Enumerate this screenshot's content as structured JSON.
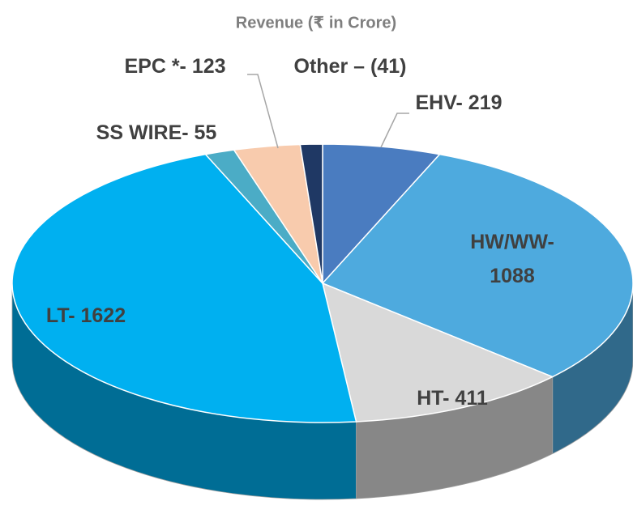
{
  "chart_data": {
    "type": "pie",
    "title": "Revenue (₹ in Crore)",
    "values": [
      219,
      1088,
      411,
      1622,
      55,
      123,
      41
    ],
    "value_labels": [
      "EHV- 219",
      "HW/WW-\n1088",
      "HT- 411",
      "LT- 1622",
      "SS WIRE- 55",
      "EPC *- 123",
      "Other – (41)"
    ],
    "colors": [
      "#4a7cc0",
      "#4eaade",
      "#d9d9d9",
      "#00b0f0",
      "#4bacc6",
      "#f8cbad",
      "#1f3864"
    ]
  }
}
